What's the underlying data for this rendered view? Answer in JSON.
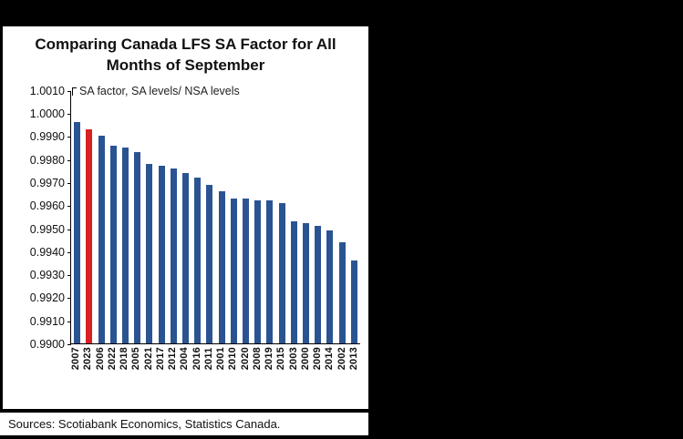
{
  "title": "Comparing Canada LFS SA Factor for All Months of September",
  "annotation": "SA factor, SA levels/ NSA levels",
  "sources": "Sources: Scotiabank Economics, Statistics Canada.",
  "colors": {
    "bar": "#2A5491",
    "highlight": "#D92121",
    "panel_background": "#FFFFFF",
    "page_background": "#000000"
  },
  "chart_data": {
    "type": "bar",
    "title": "Comparing Canada LFS SA Factor for All Months of September",
    "annotation": "SA factor, SA levels/ NSA levels",
    "categories": [
      "2007",
      "2023",
      "2006",
      "2022",
      "2018",
      "2005",
      "2021",
      "2017",
      "2012",
      "2004",
      "2016",
      "2011",
      "2001",
      "2010",
      "2020",
      "2008",
      "2019",
      "2015",
      "2003",
      "2000",
      "2009",
      "2014",
      "2002",
      "2013"
    ],
    "values": [
      0.9996,
      0.9993,
      0.999,
      0.9986,
      0.9985,
      0.9983,
      0.9978,
      0.9977,
      0.9976,
      0.9974,
      0.9972,
      0.9969,
      0.9966,
      0.9963,
      0.9963,
      0.9962,
      0.9962,
      0.9961,
      0.9953,
      0.9952,
      0.9951,
      0.9949,
      0.9944,
      0.9936
    ],
    "highlight_category": "2023",
    "bar_color": "#2A5491",
    "highlight_color": "#D92121",
    "xlabel": "",
    "ylabel": "SA factor, SA levels/ NSA levels",
    "ylim": [
      0.99,
      1.001
    ],
    "ytick_step": 0.001,
    "ytick_decimals": 4,
    "grid": false,
    "legend": null
  }
}
